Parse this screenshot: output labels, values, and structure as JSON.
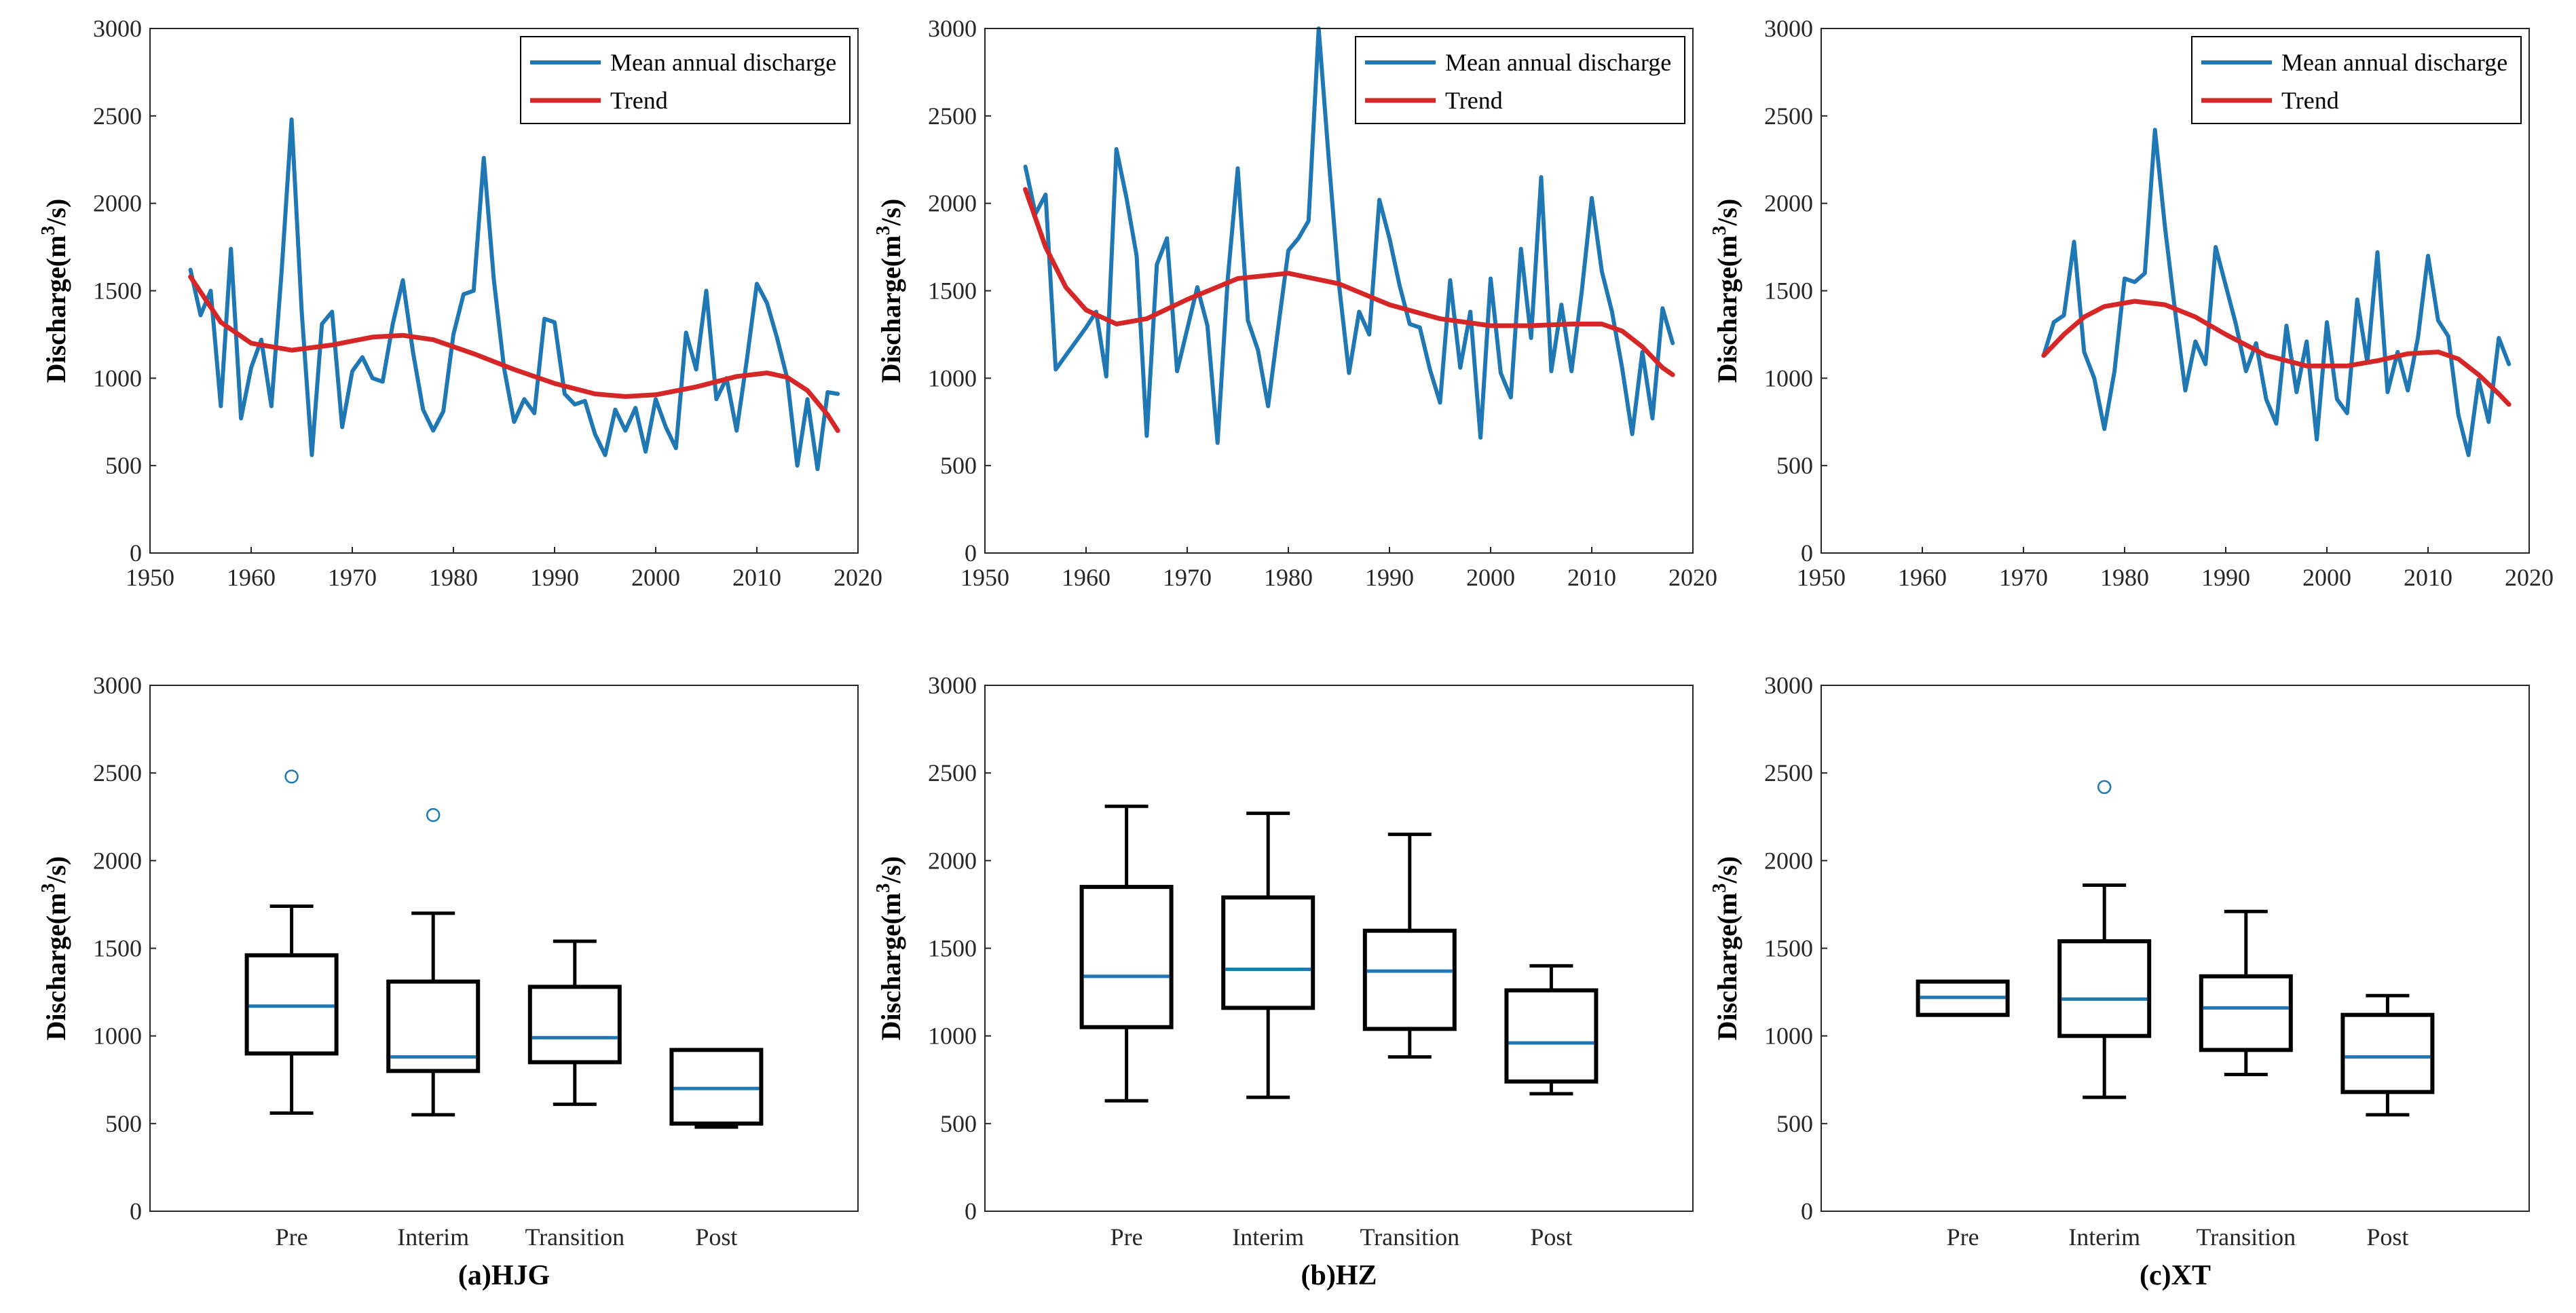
{
  "colors": {
    "discharge": "#1f77b4",
    "trend": "#d62728",
    "box": "#000000",
    "median": "#1f77b4",
    "axis": "#262626"
  },
  "chart_data": [
    {
      "type": "line",
      "panel": "HJG",
      "ylabel_main": "Discharge(m",
      "ylabel_sup": "3",
      "ylabel_tail": "/s)",
      "xlim": [
        1950,
        2020
      ],
      "ylim": [
        0,
        3000
      ],
      "xticks": [
        1950,
        1960,
        1970,
        1980,
        1990,
        2000,
        2010,
        2020
      ],
      "yticks": [
        0,
        500,
        1000,
        1500,
        2000,
        2500,
        3000
      ],
      "legend": {
        "position": "top-right",
        "entries": [
          "Mean annual discharge",
          "Trend"
        ]
      },
      "series": [
        {
          "name": "Mean annual discharge",
          "color": "#1f77b4",
          "x": [
            1954,
            1955,
            1956,
            1957,
            1958,
            1959,
            1960,
            1961,
            1962,
            1963,
            1964,
            1965,
            1966,
            1967,
            1968,
            1969,
            1970,
            1971,
            1972,
            1973,
            1974,
            1975,
            1976,
            1977,
            1978,
            1979,
            1980,
            1981,
            1982,
            1983,
            1984,
            1985,
            1986,
            1987,
            1988,
            1989,
            1990,
            1991,
            1992,
            1993,
            1994,
            1995,
            1996,
            1997,
            1998,
            1999,
            2000,
            2001,
            2002,
            2003,
            2004,
            2005,
            2006,
            2007,
            2008,
            2009,
            2010,
            2011,
            2012,
            2013,
            2014,
            2015,
            2016,
            2017,
            2018
          ],
          "y": [
            1620,
            1360,
            1500,
            840,
            1740,
            770,
            1060,
            1220,
            840,
            1600,
            2480,
            1380,
            560,
            1310,
            1380,
            720,
            1040,
            1120,
            1000,
            980,
            1310,
            1560,
            1150,
            820,
            700,
            810,
            1250,
            1480,
            1500,
            2260,
            1560,
            1060,
            750,
            880,
            800,
            1340,
            1320,
            910,
            850,
            870,
            680,
            560,
            820,
            700,
            830,
            580,
            880,
            720,
            600,
            1260,
            1050,
            1500,
            880,
            1000,
            700,
            1100,
            1540,
            1430,
            1230,
            1000,
            500,
            880,
            480,
            920,
            910
          ]
        },
        {
          "name": "Trend",
          "color": "#d62728",
          "x": [
            1954,
            1957,
            1960,
            1964,
            1968,
            1972,
            1975,
            1978,
            1982,
            1986,
            1990,
            1994,
            1997,
            2000,
            2004,
            2008,
            2011,
            2013,
            2015,
            2017,
            2018
          ],
          "y": [
            1580,
            1320,
            1200,
            1160,
            1190,
            1235,
            1245,
            1220,
            1140,
            1050,
            970,
            910,
            895,
            905,
            950,
            1010,
            1030,
            1005,
            930,
            790,
            700
          ]
        }
      ]
    },
    {
      "type": "line",
      "panel": "HZ",
      "ylabel_main": "Discharge(m",
      "ylabel_sup": "3",
      "ylabel_tail": "/s)",
      "xlim": [
        1950,
        2020
      ],
      "ylim": [
        0,
        3000
      ],
      "xticks": [
        1950,
        1960,
        1970,
        1980,
        1990,
        2000,
        2010,
        2020
      ],
      "yticks": [
        0,
        500,
        1000,
        1500,
        2000,
        2500,
        3000
      ],
      "legend": {
        "position": "top-right",
        "entries": [
          "Mean annual discharge",
          "Trend"
        ]
      },
      "series": [
        {
          "name": "Mean annual discharge",
          "color": "#1f77b4",
          "x": [
            1954,
            1955,
            1956,
            1957,
            1958,
            1959,
            1960,
            1961,
            1962,
            1963,
            1964,
            1965,
            1966,
            1967,
            1968,
            1969,
            1970,
            1971,
            1972,
            1973,
            1974,
            1975,
            1976,
            1977,
            1978,
            1979,
            1980,
            1981,
            1982,
            1983,
            1984,
            1985,
            1986,
            1987,
            1988,
            1989,
            1990,
            1991,
            1992,
            1993,
            1994,
            1995,
            1996,
            1997,
            1998,
            1999,
            2000,
            2001,
            2002,
            2003,
            2004,
            2005,
            2006,
            2007,
            2008,
            2009,
            2010,
            2011,
            2012,
            2013,
            2014,
            2015,
            2016,
            2017,
            2018
          ],
          "y": [
            2210,
            1940,
            2050,
            1050,
            1130,
            1210,
            1290,
            1380,
            1010,
            2310,
            2030,
            1700,
            670,
            1650,
            1800,
            1040,
            1280,
            1520,
            1300,
            630,
            1560,
            2200,
            1330,
            1160,
            840,
            1290,
            1730,
            1800,
            1900,
            3000,
            2250,
            1540,
            1030,
            1380,
            1250,
            2020,
            1800,
            1530,
            1310,
            1290,
            1050,
            860,
            1560,
            1060,
            1380,
            660,
            1570,
            1030,
            890,
            1740,
            1230,
            2150,
            1040,
            1420,
            1040,
            1490,
            2030,
            1610,
            1380,
            1060,
            680,
            1150,
            770,
            1400,
            1200
          ]
        },
        {
          "name": "Trend",
          "color": "#d62728",
          "x": [
            1954,
            1956,
            1958,
            1960,
            1963,
            1966,
            1970,
            1975,
            1980,
            1985,
            1990,
            1995,
            2000,
            2004,
            2008,
            2011,
            2013,
            2015,
            2017,
            2018
          ],
          "y": [
            2080,
            1750,
            1520,
            1390,
            1310,
            1340,
            1450,
            1570,
            1600,
            1540,
            1420,
            1340,
            1300,
            1300,
            1310,
            1310,
            1270,
            1180,
            1060,
            1020
          ]
        }
      ]
    },
    {
      "type": "line",
      "panel": "XT",
      "ylabel_main": "Discharge(m",
      "ylabel_sup": "3",
      "ylabel_tail": "/s)",
      "xlim": [
        1950,
        2020
      ],
      "ylim": [
        0,
        3000
      ],
      "xticks": [
        1950,
        1960,
        1970,
        1980,
        1990,
        2000,
        2010,
        2020
      ],
      "yticks": [
        0,
        500,
        1000,
        1500,
        2000,
        2500,
        3000
      ],
      "legend": {
        "position": "top-right",
        "entries": [
          "Mean annual discharge",
          "Trend"
        ]
      },
      "series": [
        {
          "name": "Mean annual discharge",
          "color": "#1f77b4",
          "x": [
            1972,
            1973,
            1974,
            1975,
            1976,
            1977,
            1978,
            1979,
            1980,
            1981,
            1982,
            1983,
            1984,
            1985,
            1986,
            1987,
            1988,
            1989,
            1990,
            1991,
            1992,
            1993,
            1994,
            1995,
            1996,
            1997,
            1998,
            1999,
            2000,
            2001,
            2002,
            2003,
            2004,
            2005,
            2006,
            2007,
            2008,
            2009,
            2010,
            2011,
            2012,
            2013,
            2014,
            2015,
            2016,
            2017,
            2018
          ],
          "y": [
            1130,
            1320,
            1360,
            1780,
            1150,
            1000,
            710,
            1040,
            1570,
            1550,
            1600,
            2420,
            1860,
            1380,
            930,
            1210,
            1080,
            1750,
            1530,
            1310,
            1040,
            1200,
            880,
            740,
            1300,
            920,
            1210,
            650,
            1320,
            880,
            800,
            1450,
            1090,
            1720,
            920,
            1150,
            930,
            1230,
            1700,
            1330,
            1240,
            790,
            560,
            990,
            750,
            1230,
            1080
          ]
        },
        {
          "name": "Trend",
          "color": "#d62728",
          "x": [
            1972,
            1974,
            1976,
            1978,
            1981,
            1984,
            1987,
            1990,
            1994,
            1998,
            2002,
            2005,
            2008,
            2011,
            2013,
            2015,
            2017,
            2018
          ],
          "y": [
            1130,
            1250,
            1350,
            1410,
            1440,
            1420,
            1350,
            1250,
            1130,
            1070,
            1070,
            1100,
            1140,
            1150,
            1110,
            1020,
            910,
            850
          ]
        }
      ]
    },
    {
      "type": "box",
      "panel": "HJG",
      "caption": "(a)HJG",
      "ylabel_main": "Discharge(m",
      "ylabel_sup": "3",
      "ylabel_tail": "/s)",
      "ylim": [
        0,
        3000
      ],
      "yticks": [
        0,
        500,
        1000,
        1500,
        2000,
        2500,
        3000
      ],
      "categories": [
        "Pre",
        "Interim",
        "Transition",
        "Post"
      ],
      "boxes": [
        {
          "whislo": 560,
          "q1": 900,
          "med": 1170,
          "q3": 1460,
          "whishi": 1740,
          "fliers": [
            2480
          ]
        },
        {
          "whislo": 550,
          "q1": 800,
          "med": 880,
          "q3": 1310,
          "whishi": 1700,
          "fliers": [
            2260
          ]
        },
        {
          "whislo": 610,
          "q1": 850,
          "med": 990,
          "q3": 1280,
          "whishi": 1540,
          "fliers": []
        },
        {
          "whislo": 480,
          "q1": 500,
          "med": 700,
          "q3": 920,
          "whishi": 920,
          "fliers": []
        }
      ]
    },
    {
      "type": "box",
      "panel": "HZ",
      "caption": "(b)HZ",
      "ylabel_main": "Discharge(m",
      "ylabel_sup": "3",
      "ylabel_tail": "/s)",
      "ylim": [
        0,
        3000
      ],
      "yticks": [
        0,
        500,
        1000,
        1500,
        2000,
        2500,
        3000
      ],
      "categories": [
        "Pre",
        "Interim",
        "Transition",
        "Post"
      ],
      "boxes": [
        {
          "whislo": 630,
          "q1": 1050,
          "med": 1340,
          "q3": 1850,
          "whishi": 2310,
          "fliers": []
        },
        {
          "whislo": 650,
          "q1": 1160,
          "med": 1380,
          "q3": 1790,
          "whishi": 2270,
          "fliers": []
        },
        {
          "whislo": 880,
          "q1": 1040,
          "med": 1370,
          "q3": 1600,
          "whishi": 2150,
          "fliers": []
        },
        {
          "whislo": 670,
          "q1": 740,
          "med": 960,
          "q3": 1260,
          "whishi": 1400,
          "fliers": []
        }
      ]
    },
    {
      "type": "box",
      "panel": "XT",
      "caption": "(c)XT",
      "ylabel_main": "Discharge(m",
      "ylabel_sup": "3",
      "ylabel_tail": "/s)",
      "ylim": [
        0,
        3000
      ],
      "yticks": [
        0,
        500,
        1000,
        1500,
        2000,
        2500,
        3000
      ],
      "categories": [
        "Pre",
        "Interim",
        "Transition",
        "Post"
      ],
      "boxes": [
        {
          "whislo": 1120,
          "q1": 1120,
          "med": 1220,
          "q3": 1310,
          "whishi": 1310,
          "fliers": []
        },
        {
          "whislo": 650,
          "q1": 1000,
          "med": 1210,
          "q3": 1540,
          "whishi": 1860,
          "fliers": [
            2420
          ]
        },
        {
          "whislo": 780,
          "q1": 920,
          "med": 1160,
          "q3": 1340,
          "whishi": 1710,
          "fliers": []
        },
        {
          "whislo": 550,
          "q1": 680,
          "med": 880,
          "q3": 1120,
          "whishi": 1230,
          "fliers": []
        }
      ]
    }
  ]
}
